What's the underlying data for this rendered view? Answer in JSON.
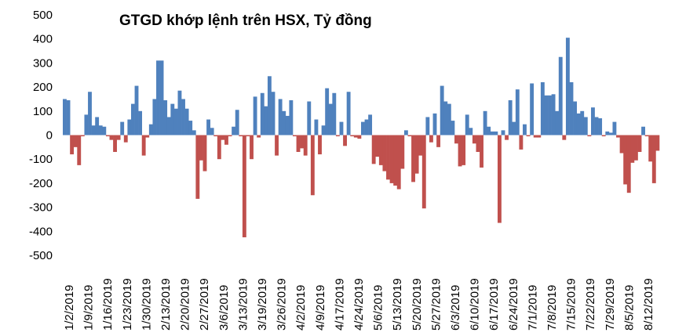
{
  "chart_data": {
    "type": "bar",
    "title": "GTGD khớp lệnh trên HSX, Tỷ đồng",
    "xlabel": "",
    "ylabel": "",
    "ylim": [
      -500,
      500
    ],
    "yticks": [
      500,
      400,
      300,
      200,
      100,
      0,
      -100,
      -200,
      -300,
      -400,
      -500
    ],
    "xtick_labels": [
      "1/2/2019",
      "1/9/2019",
      "1/16/2019",
      "1/23/2019",
      "1/30/2019",
      "2/13/2019",
      "2/20/2019",
      "2/27/2019",
      "3/6/2019",
      "3/13/2019",
      "3/19/2019",
      "3/26/2019",
      "4/2/2019",
      "4/9/2019",
      "4/17/2019",
      "4/24/2019",
      "5/6/2019",
      "5/13/2019",
      "5/20/2019",
      "5/27/2019",
      "6/3/2019",
      "6/10/2019",
      "6/17/2019",
      "6/24/2019",
      "7/1/2019",
      "7/8/2019",
      "7/15/2019",
      "7/22/2019",
      "7/29/2019",
      "8/5/2019",
      "8/12/2019"
    ],
    "positive_color": "#4f81bd",
    "negative_color": "#c0504d",
    "grid": false,
    "legend": "none",
    "values": [
      150,
      145,
      -80,
      -50,
      -125,
      -5,
      85,
      180,
      40,
      75,
      40,
      35,
      -5,
      -20,
      -70,
      -20,
      55,
      -30,
      65,
      130,
      205,
      100,
      -85,
      -10,
      45,
      150,
      310,
      310,
      145,
      75,
      130,
      110,
      185,
      150,
      110,
      60,
      20,
      -265,
      -105,
      -150,
      65,
      30,
      -5,
      -100,
      -20,
      -40,
      -5,
      35,
      105,
      -5,
      -425,
      -5,
      -100,
      160,
      -10,
      175,
      120,
      245,
      180,
      -85,
      150,
      100,
      80,
      145,
      -5,
      -70,
      -55,
      -85,
      140,
      -250,
      65,
      -80,
      40,
      195,
      130,
      175,
      -5,
      55,
      -45,
      180,
      -5,
      -10,
      -15,
      55,
      65,
      85,
      -120,
      -90,
      -125,
      -150,
      -185,
      -200,
      -210,
      -225,
      -140,
      20,
      -5,
      -195,
      -160,
      -85,
      -305,
      75,
      -30,
      90,
      -50,
      205,
      140,
      130,
      60,
      -35,
      -130,
      -125,
      85,
      30,
      -35,
      -70,
      -135,
      100,
      35,
      15,
      15,
      -365,
      20,
      -20,
      145,
      55,
      190,
      -60,
      45,
      -5,
      215,
      -10,
      -10,
      220,
      165,
      165,
      170,
      100,
      325,
      -20,
      405,
      220,
      140,
      90,
      100,
      75,
      -5,
      115,
      75,
      70,
      -5,
      15,
      10,
      55,
      -10,
      -75,
      -205,
      -240,
      -115,
      -105,
      -70,
      35,
      -5,
      -110,
      -200,
      -65
    ]
  }
}
